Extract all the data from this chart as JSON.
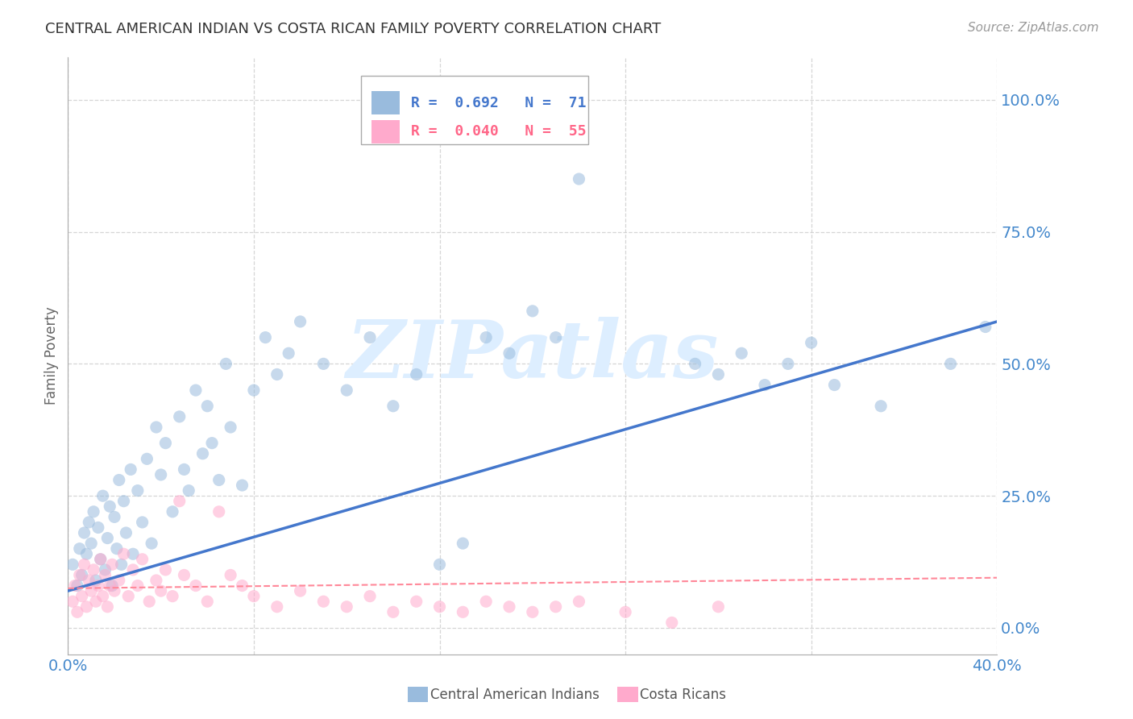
{
  "title": "CENTRAL AMERICAN INDIAN VS COSTA RICAN FAMILY POVERTY CORRELATION CHART",
  "source": "Source: ZipAtlas.com",
  "ylabel": "Family Poverty",
  "ytick_values": [
    0.0,
    0.25,
    0.5,
    0.75,
    1.0
  ],
  "xlim": [
    0.0,
    0.4
  ],
  "ylim": [
    -0.05,
    1.08
  ],
  "color_blue": "#99BBDD",
  "color_pink": "#FFAACC",
  "line_blue": "#4477CC",
  "line_pink": "#FF8899",
  "background": "#FFFFFF",
  "grid_color": "#CCCCCC",
  "blue_scatter_x": [
    0.002,
    0.004,
    0.005,
    0.006,
    0.007,
    0.008,
    0.009,
    0.01,
    0.011,
    0.012,
    0.013,
    0.014,
    0.015,
    0.016,
    0.017,
    0.018,
    0.019,
    0.02,
    0.021,
    0.022,
    0.023,
    0.024,
    0.025,
    0.027,
    0.028,
    0.03,
    0.032,
    0.034,
    0.036,
    0.038,
    0.04,
    0.042,
    0.045,
    0.048,
    0.05,
    0.052,
    0.055,
    0.058,
    0.06,
    0.062,
    0.065,
    0.068,
    0.07,
    0.075,
    0.08,
    0.085,
    0.09,
    0.095,
    0.1,
    0.11,
    0.12,
    0.13,
    0.14,
    0.15,
    0.16,
    0.17,
    0.18,
    0.19,
    0.2,
    0.21,
    0.22,
    0.27,
    0.28,
    0.29,
    0.3,
    0.31,
    0.32,
    0.33,
    0.35,
    0.38,
    0.395
  ],
  "blue_scatter_y": [
    0.12,
    0.08,
    0.15,
    0.1,
    0.18,
    0.14,
    0.2,
    0.16,
    0.22,
    0.09,
    0.19,
    0.13,
    0.25,
    0.11,
    0.17,
    0.23,
    0.08,
    0.21,
    0.15,
    0.28,
    0.12,
    0.24,
    0.18,
    0.3,
    0.14,
    0.26,
    0.2,
    0.32,
    0.16,
    0.38,
    0.29,
    0.35,
    0.22,
    0.4,
    0.3,
    0.26,
    0.45,
    0.33,
    0.42,
    0.35,
    0.28,
    0.5,
    0.38,
    0.27,
    0.45,
    0.55,
    0.48,
    0.52,
    0.58,
    0.5,
    0.45,
    0.55,
    0.42,
    0.48,
    0.12,
    0.16,
    0.55,
    0.52,
    0.6,
    0.55,
    0.85,
    0.5,
    0.48,
    0.52,
    0.46,
    0.5,
    0.54,
    0.46,
    0.42,
    0.5,
    0.57
  ],
  "pink_scatter_x": [
    0.002,
    0.003,
    0.004,
    0.005,
    0.006,
    0.007,
    0.008,
    0.009,
    0.01,
    0.011,
    0.012,
    0.013,
    0.014,
    0.015,
    0.016,
    0.017,
    0.018,
    0.019,
    0.02,
    0.022,
    0.024,
    0.026,
    0.028,
    0.03,
    0.032,
    0.035,
    0.038,
    0.04,
    0.042,
    0.045,
    0.048,
    0.05,
    0.055,
    0.06,
    0.065,
    0.07,
    0.075,
    0.08,
    0.09,
    0.1,
    0.11,
    0.12,
    0.13,
    0.14,
    0.15,
    0.16,
    0.17,
    0.18,
    0.19,
    0.2,
    0.21,
    0.22,
    0.24,
    0.26,
    0.28
  ],
  "pink_scatter_y": [
    0.05,
    0.08,
    0.03,
    0.1,
    0.06,
    0.12,
    0.04,
    0.09,
    0.07,
    0.11,
    0.05,
    0.08,
    0.13,
    0.06,
    0.1,
    0.04,
    0.08,
    0.12,
    0.07,
    0.09,
    0.14,
    0.06,
    0.11,
    0.08,
    0.13,
    0.05,
    0.09,
    0.07,
    0.11,
    0.06,
    0.24,
    0.1,
    0.08,
    0.05,
    0.22,
    0.1,
    0.08,
    0.06,
    0.04,
    0.07,
    0.05,
    0.04,
    0.06,
    0.03,
    0.05,
    0.04,
    0.03,
    0.05,
    0.04,
    0.03,
    0.04,
    0.05,
    0.03,
    0.01,
    0.04
  ],
  "blue_line_x": [
    0.0,
    0.4
  ],
  "blue_line_y": [
    0.07,
    0.58
  ],
  "pink_line_x": [
    0.0,
    0.4
  ],
  "pink_line_y": [
    0.075,
    0.095
  ],
  "marker_size": 120,
  "marker_alpha": 0.55,
  "text_color_blue": "#4477CC",
  "text_color_pink": "#FF6688",
  "title_color": "#333333",
  "axis_label_color": "#4488CC",
  "watermark_text": "ZIPatlas",
  "watermark_color": "#DDEEFF"
}
